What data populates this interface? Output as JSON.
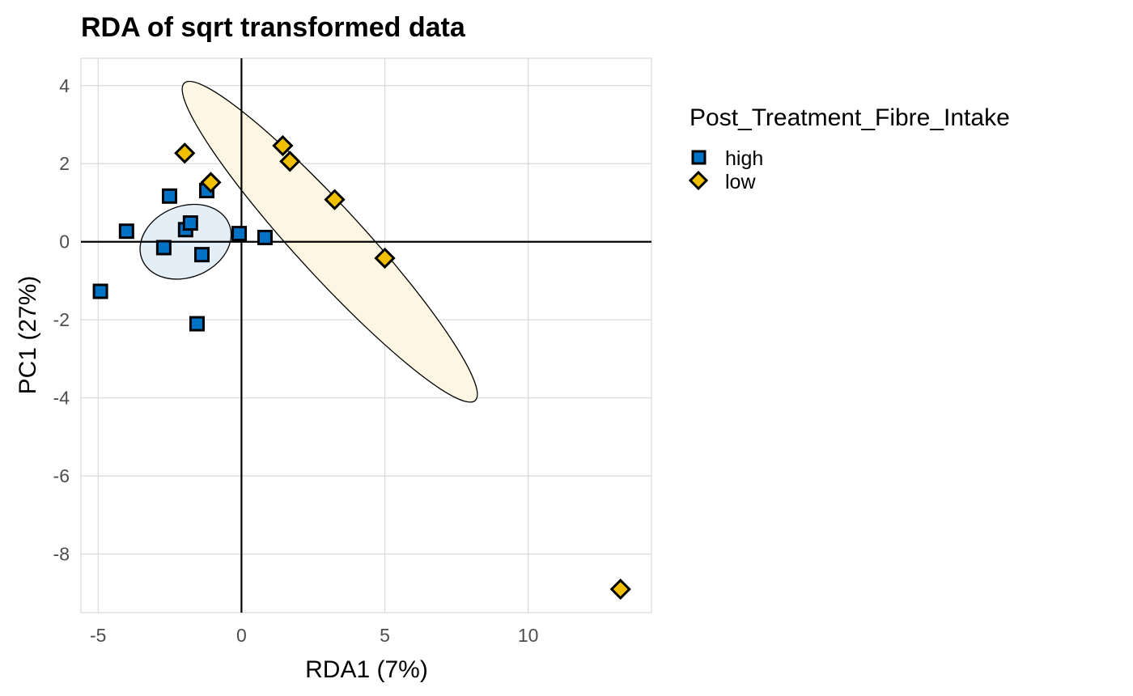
{
  "chart_data": {
    "type": "scatter",
    "title": "RDA of sqrt transformed data",
    "xlabel": "RDA1 (7%)",
    "ylabel": "PC1 (27%)",
    "xlim": [
      -5.6,
      14.3
    ],
    "ylim": [
      -9.5,
      4.7
    ],
    "xticks": [
      -5,
      0,
      5,
      10
    ],
    "yticks": [
      4,
      2,
      0,
      -2,
      -4,
      -6,
      -8
    ],
    "xtick_labels": [
      "-5",
      "0",
      "5",
      "10"
    ],
    "ytick_labels": [
      "4",
      "2",
      "0",
      "-2",
      "-4",
      "-6",
      "-8"
    ],
    "grid": true,
    "legend": {
      "title": "Post_Treatment_Fibre_Intake",
      "placement": "right"
    },
    "series": [
      {
        "name": "high",
        "marker": "square",
        "color": "#0072C6",
        "x": [
          -4.92,
          -4.01,
          -2.71,
          -2.51,
          -1.95,
          -1.78,
          -1.38,
          -1.55,
          -1.21,
          -0.08,
          0.82
        ],
        "y": [
          -1.27,
          0.27,
          -0.15,
          1.17,
          0.31,
          0.48,
          -0.33,
          -2.1,
          1.31,
          0.21,
          0.11
        ]
      },
      {
        "name": "low",
        "marker": "diamond",
        "color": "#F0C000",
        "x": [
          -1.98,
          -1.07,
          1.44,
          1.69,
          3.25,
          5.0,
          13.22
        ],
        "y": [
          2.27,
          1.52,
          2.46,
          2.06,
          1.08,
          -0.42,
          -8.9
        ]
      }
    ],
    "ellipses": [
      {
        "group": "high",
        "center": [
          -1.95,
          0.0
        ],
        "fill": "#E4EEF7"
      },
      {
        "group": "low",
        "center": [
          3.08,
          0.0
        ],
        "fill": "#FDF6E3"
      }
    ],
    "reference_lines": {
      "x": 0,
      "y": 0
    }
  }
}
